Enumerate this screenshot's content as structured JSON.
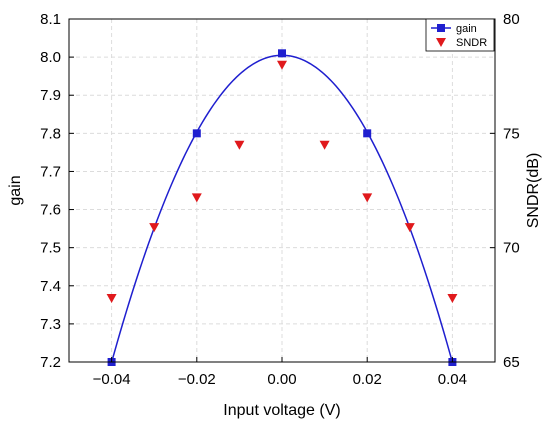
{
  "chart_data": {
    "type": "line",
    "xlabel": "Input voltage (V)",
    "ylabel": "gain",
    "y2label": "SNDR(dB)",
    "xlim": [
      -0.05,
      0.05
    ],
    "ylim": [
      7.2,
      8.1
    ],
    "y2lim": [
      65,
      80
    ],
    "x_ticks": [
      "−0.04",
      "−0.02",
      "0.00",
      "0.02",
      "0.04"
    ],
    "x_tick_values": [
      -0.04,
      -0.02,
      0,
      0.02,
      0.04
    ],
    "y_ticks": [
      "7.2",
      "7.3",
      "7.4",
      "7.5",
      "7.6",
      "7.7",
      "7.8",
      "7.9",
      "8.0",
      "8.1"
    ],
    "y_tick_values": [
      7.2,
      7.3,
      7.4,
      7.5,
      7.6,
      7.7,
      7.8,
      7.9,
      8.0,
      8.1
    ],
    "y2_ticks": [
      "65",
      "70",
      "75",
      "80"
    ],
    "y2_tick_values": [
      65,
      70,
      75,
      80
    ],
    "grid": true,
    "legend_position": "top-right",
    "series": [
      {
        "name": "gain",
        "axis": "left",
        "marker": "square",
        "color": "#1f1fcf",
        "x": [
          -0.04,
          -0.02,
          0.0,
          0.02,
          0.04
        ],
        "y": [
          7.2,
          7.8,
          8.01,
          7.8,
          7.2
        ]
      },
      {
        "name": "SNDR",
        "axis": "right",
        "marker": "triangle-down",
        "color": "#e0191c",
        "x": [
          -0.04,
          -0.03,
          -0.02,
          -0.01,
          0.0,
          0.01,
          0.02,
          0.03,
          0.04
        ],
        "y": [
          67.8,
          70.9,
          72.2,
          74.5,
          78.0,
          74.5,
          72.2,
          70.9,
          67.8
        ]
      }
    ]
  }
}
